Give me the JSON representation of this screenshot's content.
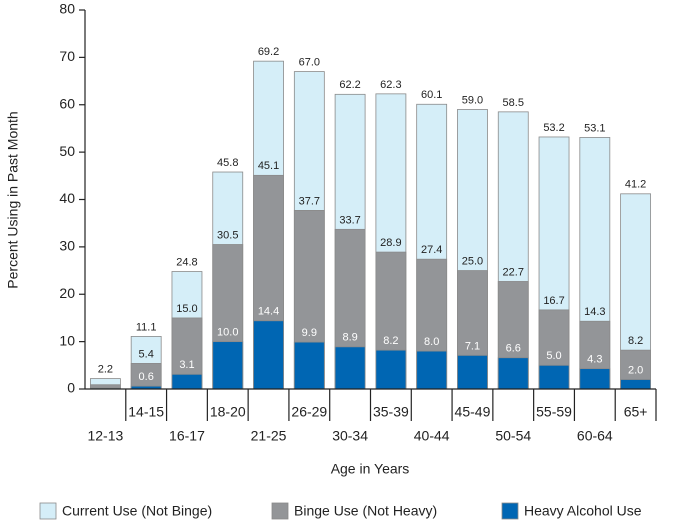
{
  "chart_data": {
    "type": "bar",
    "y_label": "Percent Using in Past Month",
    "x_label": "Age in Years",
    "categories": [
      "12-13",
      "14-15",
      "16-17",
      "18-20",
      "21-25",
      "26-29",
      "30-34",
      "35-39",
      "40-44",
      "45-49",
      "50-54",
      "55-59",
      "60-64",
      "65+"
    ],
    "series": [
      {
        "name": "Current Use (Not Binge)",
        "color": "#d5eef8",
        "values": [
          2.2,
          11.1,
          24.8,
          45.8,
          69.2,
          67.0,
          62.2,
          62.3,
          60.1,
          59.0,
          58.5,
          53.2,
          53.1,
          41.2
        ],
        "value_labels": [
          "2.2",
          "11.1",
          "24.8",
          "45.8",
          "69.2",
          "67.0",
          "62.2",
          "62.3",
          "60.1",
          "59.0",
          "58.5",
          "53.2",
          "53.1",
          "41.2"
        ]
      },
      {
        "name": "Binge Use (Not Heavy)",
        "color": "#939598",
        "values": [
          0.9,
          5.4,
          15.0,
          30.5,
          45.1,
          37.7,
          33.7,
          28.9,
          27.4,
          25.0,
          22.7,
          16.7,
          14.3,
          8.2
        ],
        "value_labels": [
          null,
          "5.4",
          "15.0",
          "30.5",
          "45.1",
          "37.7",
          "33.7",
          "28.9",
          "27.4",
          "25.0",
          "22.7",
          "16.7",
          "14.3",
          "8.2"
        ]
      },
      {
        "name": "Heavy Alcohol Use",
        "color": "#0066b3",
        "values": [
          0.2,
          0.6,
          3.1,
          10.0,
          14.4,
          9.9,
          8.9,
          8.2,
          8.0,
          7.1,
          6.6,
          5.0,
          4.3,
          2.0
        ],
        "value_labels": [
          null,
          "0.6",
          "3.1",
          "10.0",
          "14.4",
          "9.9",
          "8.9",
          "8.2",
          "8.0",
          "7.1",
          "6.6",
          "5.0",
          "4.3",
          "2.0"
        ]
      }
    ],
    "ylim": [
      0,
      80
    ],
    "yticks": [
      0,
      10,
      20,
      30,
      40,
      50,
      60,
      70,
      80
    ],
    "overlap": true
  }
}
